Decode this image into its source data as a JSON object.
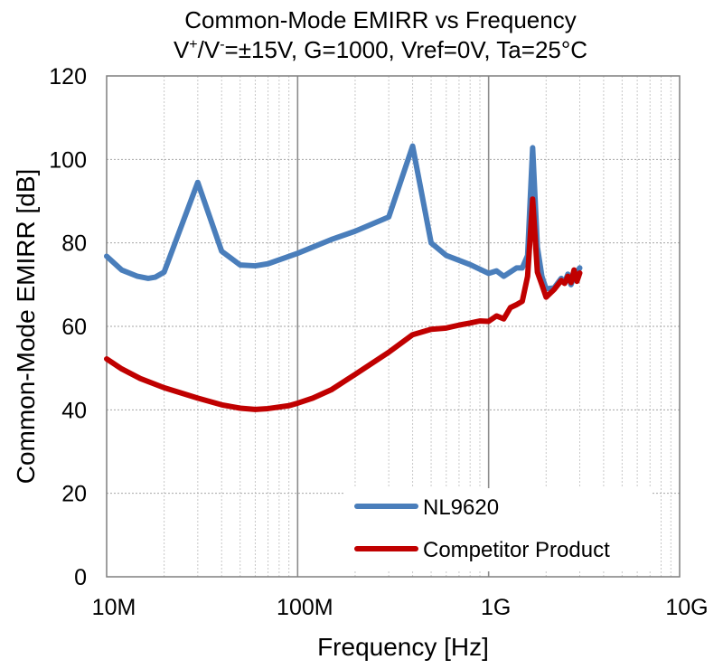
{
  "chart_data": {
    "type": "line",
    "title_line1": "Common-Mode EMIRR vs Frequency",
    "title_line2_a": "V",
    "title_line2_sup1": "+",
    "title_line2_b": "/V",
    "title_line2_sup2": "-",
    "title_line2_c": "=±15V, G=1000, Vref=0V, Ta=25°C",
    "xlabel": "Frequency [Hz]",
    "ylabel": "Common-Mode EMIRR [dB]",
    "x_scale": "log",
    "xlim": [
      10000000,
      10000000000
    ],
    "ylim": [
      0,
      120
    ],
    "x_ticks": [
      {
        "value": 10000000,
        "label": "10M"
      },
      {
        "value": 100000000,
        "label": "100M"
      },
      {
        "value": 1000000000,
        "label": "1G"
      },
      {
        "value": 10000000000,
        "label": "10G"
      }
    ],
    "y_ticks": [
      {
        "value": 0,
        "label": "0"
      },
      {
        "value": 20,
        "label": "20"
      },
      {
        "value": 40,
        "label": "40"
      },
      {
        "value": 60,
        "label": "60"
      },
      {
        "value": 80,
        "label": "80"
      },
      {
        "value": 100,
        "label": "100"
      },
      {
        "value": 120,
        "label": "120"
      }
    ],
    "grid": true,
    "legend_position": "bottom-right",
    "series": [
      {
        "name": "NL9620",
        "color": "#4A7EBB",
        "points": [
          [
            10000000,
            76.8
          ],
          [
            12000000,
            73.5
          ],
          [
            14500000,
            72.0
          ],
          [
            16500000,
            71.5
          ],
          [
            18000000,
            71.8
          ],
          [
            20000000,
            73.0
          ],
          [
            30000000,
            94.5
          ],
          [
            40000000,
            78.0
          ],
          [
            50000000,
            74.7
          ],
          [
            60000000,
            74.5
          ],
          [
            70000000,
            75.0
          ],
          [
            100000000,
            77.5
          ],
          [
            150000000,
            80.8
          ],
          [
            200000000,
            82.8
          ],
          [
            300000000,
            86.2
          ],
          [
            400000000,
            103.2
          ],
          [
            500000000,
            80.0
          ],
          [
            600000000,
            77.0
          ],
          [
            800000000,
            74.8
          ],
          [
            1000000000,
            72.7
          ],
          [
            1100000000,
            73.3
          ],
          [
            1200000000,
            72.0
          ],
          [
            1400000000,
            74.0
          ],
          [
            1500000000,
            74.0
          ],
          [
            1600000000,
            77.0
          ],
          [
            1700000000,
            102.8
          ],
          [
            1800000000,
            79.0
          ],
          [
            1900000000,
            72.0
          ],
          [
            2000000000,
            69.0
          ],
          [
            2200000000,
            69.2
          ],
          [
            2400000000,
            71.5
          ],
          [
            2500000000,
            70.5
          ],
          [
            2600000000,
            72.5
          ],
          [
            2700000000,
            70.0
          ],
          [
            2800000000,
            72.0
          ],
          [
            3000000000,
            74.0
          ]
        ]
      },
      {
        "name": "Competitor Product",
        "color": "#C00000",
        "points": [
          [
            10000000,
            52.2
          ],
          [
            12000000,
            49.8
          ],
          [
            15000000,
            47.5
          ],
          [
            20000000,
            45.3
          ],
          [
            30000000,
            42.8
          ],
          [
            40000000,
            41.2
          ],
          [
            50000000,
            40.4
          ],
          [
            60000000,
            40.1
          ],
          [
            70000000,
            40.3
          ],
          [
            90000000,
            41.0
          ],
          [
            100000000,
            41.6
          ],
          [
            120000000,
            42.8
          ],
          [
            150000000,
            44.8
          ],
          [
            200000000,
            48.5
          ],
          [
            300000000,
            53.8
          ],
          [
            400000000,
            58.0
          ],
          [
            500000000,
            59.3
          ],
          [
            600000000,
            59.6
          ],
          [
            700000000,
            60.3
          ],
          [
            800000000,
            60.8
          ],
          [
            900000000,
            61.3
          ],
          [
            1000000000,
            61.2
          ],
          [
            1100000000,
            62.5
          ],
          [
            1200000000,
            61.8
          ],
          [
            1300000000,
            64.5
          ],
          [
            1400000000,
            65.2
          ],
          [
            1500000000,
            66.0
          ],
          [
            1600000000,
            72.0
          ],
          [
            1700000000,
            90.5
          ],
          [
            1800000000,
            73.0
          ],
          [
            1900000000,
            70.0
          ],
          [
            2000000000,
            67.0
          ],
          [
            2200000000,
            68.8
          ],
          [
            2400000000,
            71.0
          ],
          [
            2500000000,
            70.3
          ],
          [
            2600000000,
            72.0
          ],
          [
            2700000000,
            70.5
          ],
          [
            2800000000,
            73.5
          ],
          [
            2900000000,
            70.8
          ],
          [
            3000000000,
            72.8
          ]
        ]
      }
    ]
  }
}
